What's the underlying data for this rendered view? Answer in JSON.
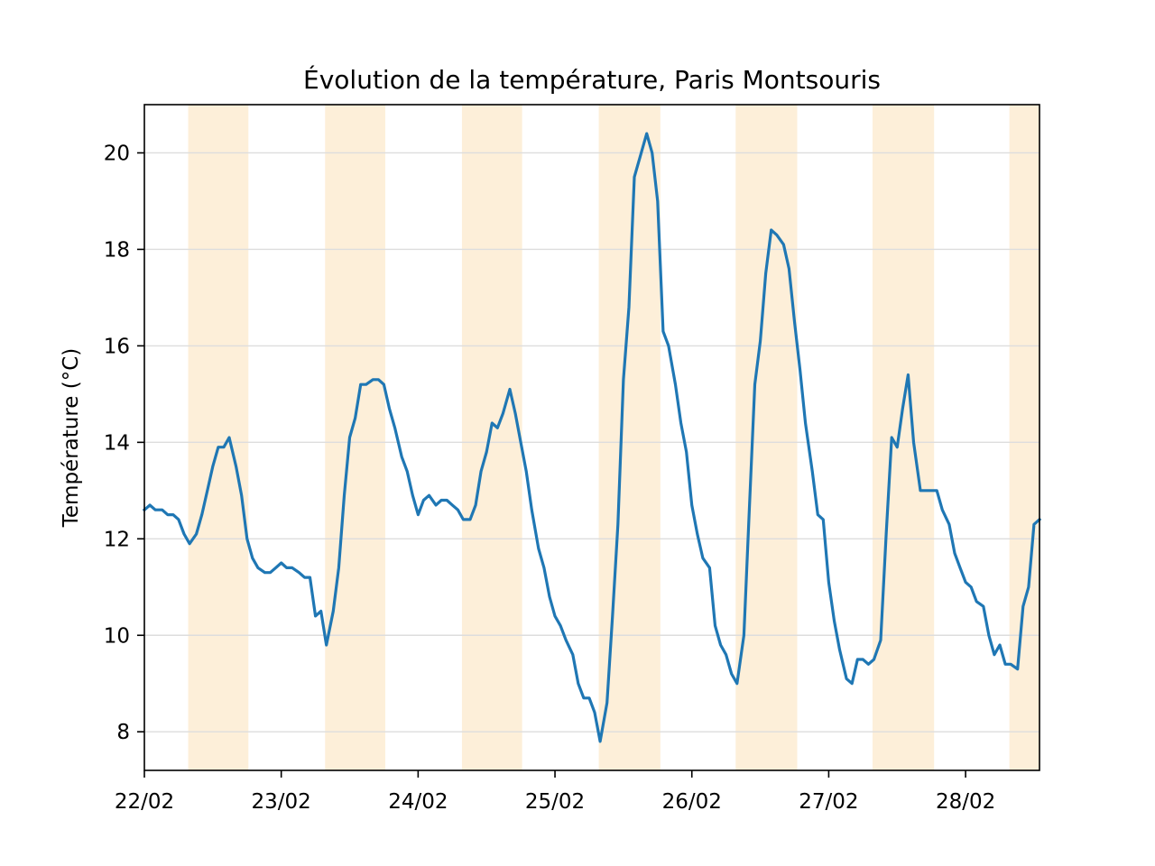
{
  "chart_data": {
    "type": "line",
    "title": "Évolution de la température, Paris Montsouris",
    "xlabel": "",
    "ylabel": "Température (°C)",
    "x_unit": "day",
    "xlim": [
      0,
      6.54
    ],
    "ylim": [
      7.2,
      21.0
    ],
    "grid": "horizontal",
    "legend": "none",
    "x_ticks": [
      {
        "value": 0,
        "label": "22/02"
      },
      {
        "value": 1,
        "label": "23/02"
      },
      {
        "value": 2,
        "label": "24/02"
      },
      {
        "value": 3,
        "label": "25/02"
      },
      {
        "value": 4,
        "label": "26/02"
      },
      {
        "value": 5,
        "label": "27/02"
      },
      {
        "value": 6,
        "label": "28/02"
      }
    ],
    "y_ticks": [
      8,
      10,
      12,
      14,
      16,
      18,
      20
    ],
    "daylight_bands": [
      [
        0.32,
        0.76
      ],
      [
        1.32,
        1.76
      ],
      [
        2.32,
        2.76
      ],
      [
        3.32,
        3.77
      ],
      [
        4.32,
        4.77
      ],
      [
        5.32,
        5.77
      ],
      [
        6.32,
        6.54
      ]
    ],
    "colors": {
      "line": "#1f77b4",
      "band": "#fdefd9",
      "grid": "#dddddd"
    },
    "series": [
      {
        "x": [
          0,
          0.04,
          0.08,
          0.13,
          0.17,
          0.21,
          0.25,
          0.29,
          0.33,
          0.38,
          0.42,
          0.46,
          0.5,
          0.54,
          0.58,
          0.62,
          0.67,
          0.71,
          0.75,
          0.79,
          0.83,
          0.88,
          0.92,
          0.96,
          1.0,
          1.04,
          1.08,
          1.13,
          1.17,
          1.21,
          1.25,
          1.29,
          1.33,
          1.38,
          1.42,
          1.46,
          1.5,
          1.54,
          1.58,
          1.62,
          1.67,
          1.71,
          1.75,
          1.79,
          1.83,
          1.88,
          1.92,
          1.96,
          2.0,
          2.04,
          2.08,
          2.13,
          2.17,
          2.21,
          2.25,
          2.29,
          2.33,
          2.38,
          2.42,
          2.46,
          2.5,
          2.54,
          2.58,
          2.62,
          2.67,
          2.71,
          2.75,
          2.79,
          2.83,
          2.88,
          2.92,
          2.96,
          3.0,
          3.04,
          3.08,
          3.13,
          3.17,
          3.21,
          3.25,
          3.29,
          3.33,
          3.38,
          3.42,
          3.46,
          3.5,
          3.54,
          3.58,
          3.62,
          3.67,
          3.71,
          3.75,
          3.79,
          3.83,
          3.88,
          3.92,
          3.96,
          4.0,
          4.04,
          4.08,
          4.13,
          4.17,
          4.21,
          4.25,
          4.29,
          4.33,
          4.38,
          4.42,
          4.46,
          4.5,
          4.54,
          4.58,
          4.62,
          4.67,
          4.71,
          4.75,
          4.79,
          4.83,
          4.88,
          4.92,
          4.96,
          5.0,
          5.04,
          5.08,
          5.13,
          5.17,
          5.21,
          5.25,
          5.29,
          5.33,
          5.38,
          5.42,
          5.46,
          5.5,
          5.54,
          5.58,
          5.62,
          5.67,
          5.71,
          5.75,
          5.79,
          5.83,
          5.88,
          5.92,
          5.96,
          6.0,
          6.04,
          6.08,
          6.13,
          6.17,
          6.21,
          6.25,
          6.29,
          6.33,
          6.38,
          6.42,
          6.46,
          6.5,
          6.54
        ],
        "values": [
          12.6,
          12.7,
          12.6,
          12.6,
          12.5,
          12.5,
          12.4,
          12.1,
          11.9,
          12.1,
          12.5,
          13.0,
          13.5,
          13.9,
          13.9,
          14.1,
          13.5,
          12.9,
          12.0,
          11.6,
          11.4,
          11.3,
          11.3,
          11.4,
          11.5,
          11.4,
          11.4,
          11.3,
          11.2,
          11.2,
          10.4,
          10.5,
          9.8,
          10.5,
          11.4,
          12.9,
          14.1,
          14.5,
          15.2,
          15.2,
          15.3,
          15.3,
          15.2,
          14.7,
          14.3,
          13.7,
          13.4,
          12.9,
          12.5,
          12.8,
          12.9,
          12.7,
          12.8,
          12.8,
          12.7,
          12.6,
          12.4,
          12.4,
          12.7,
          13.4,
          13.8,
          14.4,
          14.3,
          14.6,
          15.1,
          14.6,
          14.0,
          13.4,
          12.6,
          11.8,
          11.4,
          10.8,
          10.4,
          10.2,
          9.9,
          9.6,
          9.0,
          8.7,
          8.7,
          8.4,
          7.8,
          8.6,
          10.4,
          12.3,
          15.3,
          16.8,
          19.5,
          19.9,
          20.4,
          20.0,
          19.0,
          16.3,
          16.0,
          15.2,
          14.4,
          13.8,
          12.7,
          12.1,
          11.6,
          11.4,
          10.2,
          9.8,
          9.6,
          9.2,
          9.0,
          10.0,
          12.6,
          15.2,
          16.1,
          17.5,
          18.4,
          18.3,
          18.1,
          17.6,
          16.5,
          15.5,
          14.4,
          13.4,
          12.5,
          12.4,
          11.1,
          10.3,
          9.7,
          9.1,
          9.0,
          9.5,
          9.5,
          9.4,
          9.5,
          9.9,
          12.1,
          14.1,
          13.9,
          14.7,
          15.4,
          14.0,
          13.0,
          13.0,
          13.0,
          13.0,
          12.6,
          12.3,
          11.7,
          11.4,
          11.1,
          11.0,
          10.7,
          10.6,
          10.0,
          9.6,
          9.8,
          9.4,
          9.4,
          9.3,
          10.6,
          11.0,
          12.3,
          12.4
        ]
      }
    ]
  }
}
